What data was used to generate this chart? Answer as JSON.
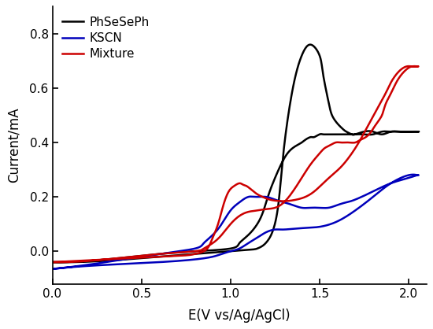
{
  "title": "",
  "xlabel": "E(V vs/Ag/AgCl)",
  "ylabel": "Current/mA",
  "xlim": [
    0.0,
    2.1
  ],
  "ylim": [
    -0.12,
    0.9
  ],
  "xticks": [
    0.0,
    0.5,
    1.0,
    1.5,
    2.0
  ],
  "yticks": [
    0.0,
    0.2,
    0.4,
    0.6,
    0.8
  ],
  "legend": [
    "PhSeSePh",
    "KSCN",
    "Mixture"
  ],
  "line_colors": [
    "#000000",
    "#0000bb",
    "#cc0000"
  ],
  "background_color": "#ffffff",
  "linewidth": 1.8,
  "black_x": [
    0.0,
    0.3,
    0.6,
    0.9,
    1.1,
    1.15,
    1.18,
    1.21,
    1.24,
    1.27,
    1.3,
    1.35,
    1.4,
    1.45,
    1.5,
    1.52,
    1.55,
    1.57,
    1.6,
    1.63,
    1.65,
    1.68,
    1.7,
    1.75,
    1.8,
    1.85,
    1.9,
    1.95,
    2.0,
    2.05,
    2.05,
    2.0,
    1.95,
    1.9,
    1.85,
    1.8,
    1.75,
    1.7,
    1.65,
    1.6,
    1.55,
    1.52,
    1.5,
    1.47,
    1.45,
    1.42,
    1.4,
    1.35,
    1.3,
    1.25,
    1.22,
    1.2,
    1.18,
    1.15,
    1.1,
    1.05,
    1.0,
    0.8,
    0.6,
    0.3,
    0.0
  ],
  "black_y": [
    -0.04,
    -0.035,
    -0.02,
    -0.005,
    0.005,
    0.01,
    0.02,
    0.04,
    0.08,
    0.18,
    0.38,
    0.6,
    0.72,
    0.76,
    0.72,
    0.65,
    0.55,
    0.5,
    0.47,
    0.45,
    0.44,
    0.43,
    0.43,
    0.44,
    0.44,
    0.43,
    0.44,
    0.44,
    0.44,
    0.44,
    0.44,
    0.44,
    0.44,
    0.44,
    0.44,
    0.43,
    0.43,
    0.43,
    0.43,
    0.43,
    0.43,
    0.43,
    0.43,
    0.42,
    0.42,
    0.41,
    0.4,
    0.38,
    0.34,
    0.27,
    0.22,
    0.18,
    0.14,
    0.1,
    0.06,
    0.03,
    0.01,
    0.0,
    -0.01,
    -0.03,
    -0.04
  ],
  "blue_x": [
    0.0,
    0.3,
    0.6,
    0.8,
    0.9,
    0.95,
    1.0,
    1.05,
    1.1,
    1.15,
    1.2,
    1.25,
    1.3,
    1.4,
    1.5,
    1.6,
    1.7,
    1.8,
    1.9,
    2.0,
    2.05,
    2.05,
    2.0,
    1.9,
    1.8,
    1.7,
    1.65,
    1.6,
    1.55,
    1.5,
    1.45,
    1.4,
    1.35,
    1.3,
    1.25,
    1.2,
    1.15,
    1.1,
    1.05,
    1.0,
    0.95,
    0.9,
    0.85,
    0.8,
    0.6,
    0.3,
    0.0
  ],
  "blue_y": [
    -0.065,
    -0.05,
    -0.04,
    -0.03,
    -0.02,
    -0.01,
    0.0,
    0.01,
    0.03,
    0.05,
    0.07,
    0.08,
    0.08,
    0.085,
    0.09,
    0.11,
    0.15,
    0.2,
    0.25,
    0.28,
    0.28,
    0.28,
    0.27,
    0.25,
    0.22,
    0.19,
    0.18,
    0.17,
    0.16,
    0.16,
    0.16,
    0.16,
    0.17,
    0.18,
    0.19,
    0.2,
    0.2,
    0.2,
    0.18,
    0.15,
    0.1,
    0.06,
    0.03,
    0.01,
    -0.01,
    -0.04,
    -0.065
  ],
  "red_x": [
    0.0,
    0.3,
    0.6,
    0.75,
    0.8,
    0.85,
    0.88,
    0.9,
    0.93,
    0.96,
    0.99,
    1.02,
    1.05,
    1.07,
    1.09,
    1.12,
    1.15,
    1.18,
    1.22,
    1.27,
    1.32,
    1.37,
    1.42,
    1.47,
    1.52,
    1.57,
    1.62,
    1.67,
    1.72,
    1.77,
    1.82,
    1.87,
    1.9,
    1.93,
    1.96,
    1.99,
    2.02,
    2.05,
    2.05,
    2.02,
    1.99,
    1.96,
    1.93,
    1.9,
    1.87,
    1.85,
    1.82,
    1.79,
    1.76,
    1.73,
    1.7,
    1.67,
    1.65,
    1.62,
    1.59,
    1.56,
    1.53,
    1.5,
    1.45,
    1.4,
    1.35,
    1.3,
    1.25,
    1.2,
    1.15,
    1.1,
    1.05,
    1.0,
    0.95,
    0.9,
    0.85,
    0.8,
    0.6,
    0.3,
    0.0
  ],
  "red_y": [
    -0.04,
    -0.03,
    -0.02,
    -0.015,
    -0.01,
    0.0,
    0.02,
    0.05,
    0.1,
    0.17,
    0.22,
    0.24,
    0.25,
    0.245,
    0.24,
    0.225,
    0.21,
    0.2,
    0.19,
    0.185,
    0.185,
    0.19,
    0.2,
    0.22,
    0.25,
    0.28,
    0.31,
    0.35,
    0.4,
    0.46,
    0.52,
    0.58,
    0.62,
    0.65,
    0.67,
    0.68,
    0.68,
    0.68,
    0.68,
    0.68,
    0.67,
    0.65,
    0.62,
    0.58,
    0.54,
    0.5,
    0.47,
    0.44,
    0.42,
    0.41,
    0.4,
    0.4,
    0.4,
    0.4,
    0.4,
    0.39,
    0.38,
    0.36,
    0.32,
    0.27,
    0.22,
    0.18,
    0.16,
    0.155,
    0.15,
    0.145,
    0.13,
    0.1,
    0.06,
    0.03,
    0.01,
    0.0,
    -0.01,
    -0.03,
    -0.04
  ]
}
